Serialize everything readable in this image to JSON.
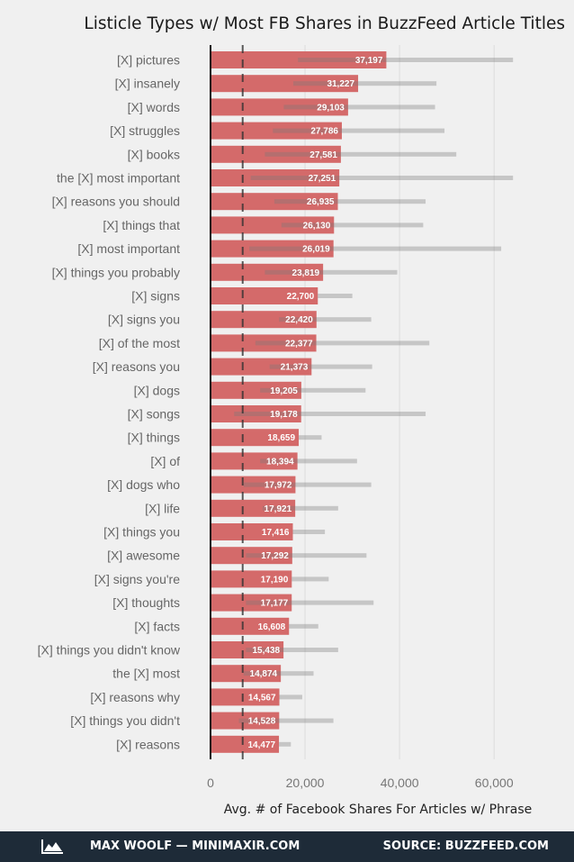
{
  "chart_data": {
    "type": "bar",
    "title": "Listicle Types w/ Most FB Shares in BuzzFeed Article Titles",
    "xlabel": "Avg. # of Facebook Shares For Articles w/ Phrase",
    "ylabel": "",
    "xlim": [
      0,
      75000
    ],
    "xticks": [
      0,
      20000,
      40000,
      60000
    ],
    "xtick_labels": [
      "0",
      "20,000",
      "40,000",
      "60,000"
    ],
    "reference_line": 6800,
    "categories": [
      "[X] pictures",
      "[X] insanely",
      "[X] words",
      "[X] struggles",
      "[X] books",
      "the [X] most important",
      "[X] reasons you should",
      "[X] things that",
      "[X] most important",
      "[X] things you probably",
      "[X] signs",
      "[X] signs you",
      "[X] of the most",
      "[X] reasons you",
      "[X] dogs",
      "[X] songs",
      "[X] things",
      "[X] of",
      "[X] dogs who",
      "[X] life",
      "[X] things you",
      "[X] awesome",
      "[X] signs you're",
      "[X] thoughts",
      "[X] facts",
      "[X] things you didn't know",
      "the [X] most",
      "[X] reasons why",
      "[X] things you didn't",
      "[X] reasons"
    ],
    "values": [
      37197,
      31227,
      29103,
      27786,
      27581,
      27251,
      26935,
      26130,
      26019,
      23819,
      22700,
      22420,
      22377,
      21373,
      19205,
      19178,
      18659,
      18394,
      17972,
      17921,
      17416,
      17292,
      17190,
      17177,
      16608,
      15438,
      14874,
      14567,
      14528,
      14477
    ],
    "value_labels": [
      "37,197",
      "31,227",
      "29,103",
      "27,786",
      "27,581",
      "27,251",
      "26,935",
      "26,130",
      "26,019",
      "23,819",
      "22,700",
      "22,420",
      "22,377",
      "21,373",
      "19,205",
      "19,178",
      "18,659",
      "18,394",
      "17,972",
      "17,921",
      "17,416",
      "17,292",
      "17,190",
      "17,177",
      "16,608",
      "15,438",
      "14,874",
      "14,567",
      "14,528",
      "14,477"
    ],
    "ci_low": [
      18500,
      17500,
      15500,
      13200,
      11500,
      8500,
      13500,
      15000,
      8200,
      11500,
      22700,
      14500,
      9500,
      12500,
      10500,
      5000,
      18659,
      10500,
      7000,
      11000,
      17416,
      7500,
      17190,
      7500,
      16608,
      7500,
      7000,
      14567,
      6000,
      14477
    ],
    "ci_high": [
      64000,
      47800,
      47500,
      49500,
      52000,
      64000,
      45500,
      45000,
      61500,
      39500,
      30000,
      34000,
      46300,
      34200,
      32800,
      45500,
      23500,
      31000,
      34000,
      27000,
      24200,
      33000,
      25000,
      34500,
      22800,
      27000,
      21800,
      19400,
      26000,
      17000
    ],
    "colors": {
      "bar": "#d46a6a",
      "ci": "#b5b5b5",
      "ref_line": "#333333"
    }
  },
  "footer": {
    "author": "MAX WOOLF — MINIMAXIR.COM",
    "source": "SOURCE: BUZZFEED.COM"
  }
}
